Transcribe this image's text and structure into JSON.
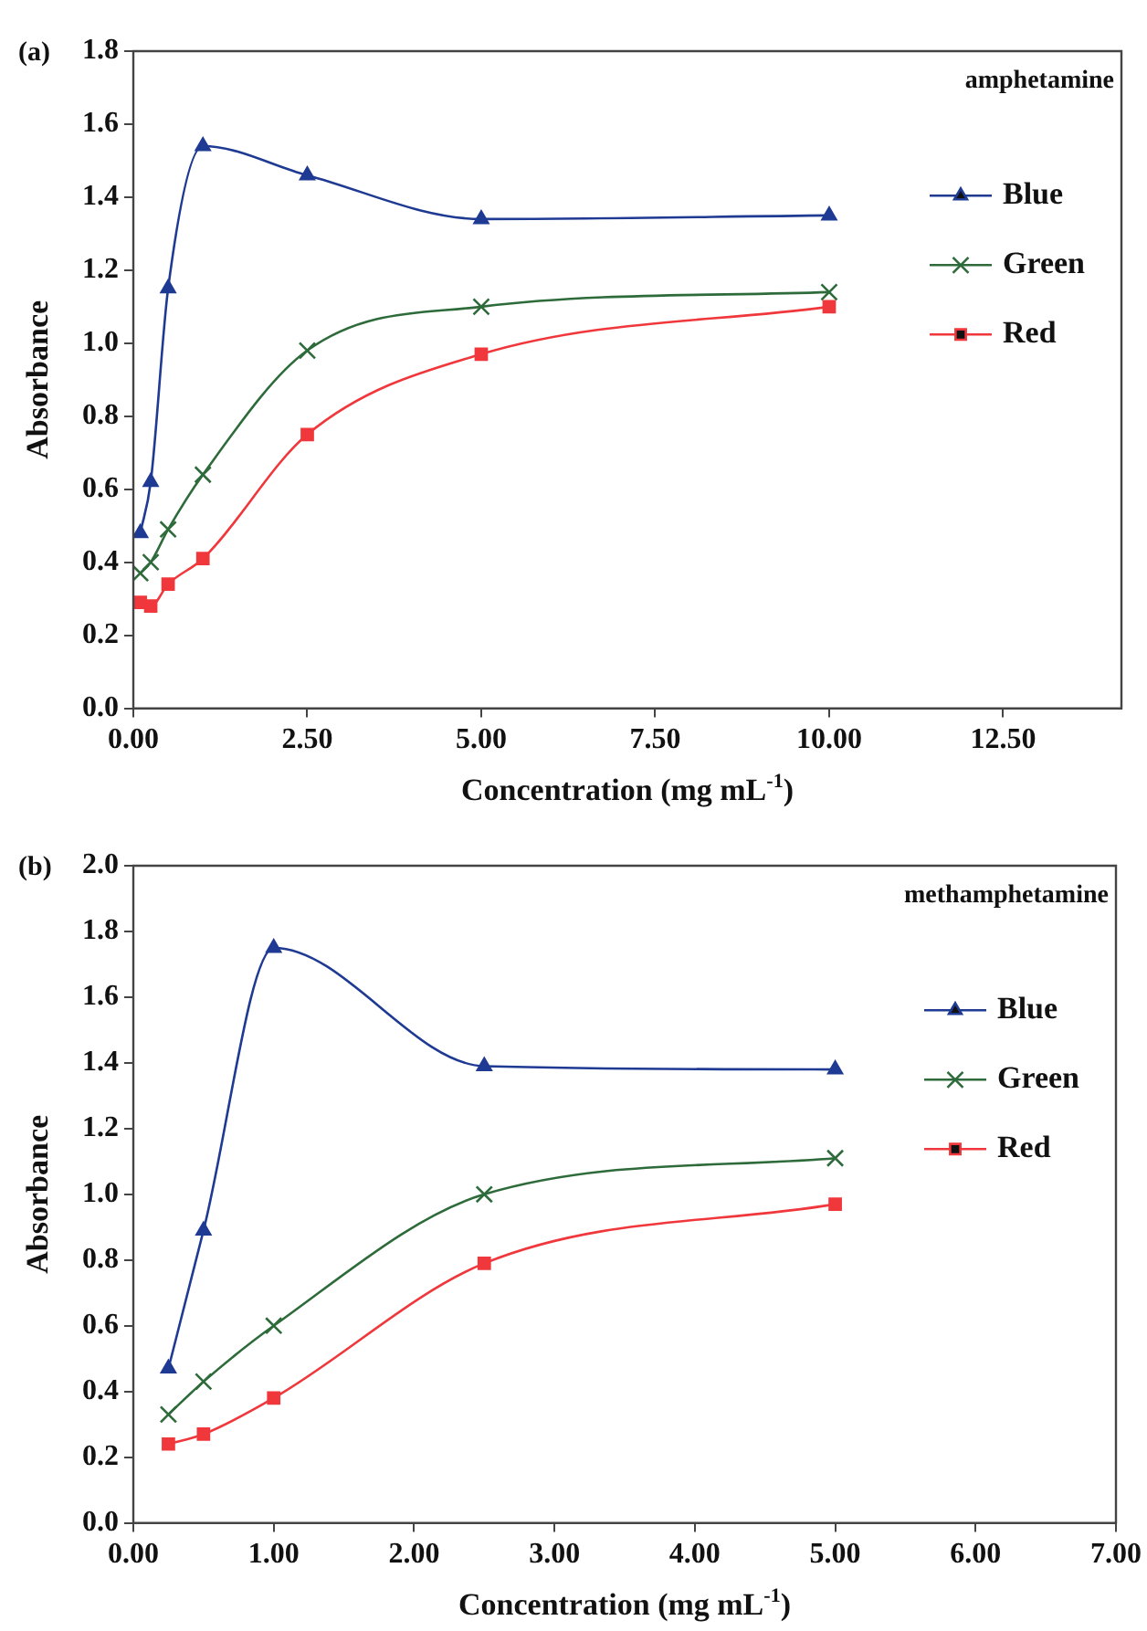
{
  "chart_data": [
    {
      "type": "line",
      "title": "(a)",
      "xlabel": "Concentration (mg mL$^{-1}$)",
      "ylabel": "Absorbance",
      "annotations": [
        "amphetamine"
      ],
      "x": [
        0.1,
        0.25,
        0.5,
        1,
        2.5,
        5,
        10
      ],
      "xlim": [
        0,
        14.2
      ],
      "xticks": [
        {
          "value": 0,
          "label": "0.00"
        },
        {
          "value": 2.5,
          "label": "2.50"
        },
        {
          "value": 5,
          "label": "5.00"
        },
        {
          "value": 7.5,
          "label": "7.50"
        },
        {
          "value": 10,
          "label": "10.00"
        },
        {
          "value": 12.5,
          "label": "12.50"
        }
      ],
      "ylim": [
        0,
        1.8
      ],
      "yticks": [
        {
          "value": 0,
          "label": "0.0"
        },
        {
          "value": 0.2,
          "label": "0.2"
        },
        {
          "value": 0.4,
          "label": "0.4"
        },
        {
          "value": 0.6,
          "label": "0.6"
        },
        {
          "value": 0.8,
          "label": "0.8"
        },
        {
          "value": 1,
          "label": "1.0"
        },
        {
          "value": 1.2,
          "label": "1.2"
        },
        {
          "value": 1.4,
          "label": "1.4"
        },
        {
          "value": 1.6,
          "label": "1.6"
        },
        {
          "value": 1.8,
          "label": "1.8"
        }
      ],
      "grid": false,
      "legend": "right",
      "series": [
        {
          "name": "Blue",
          "color": "#1f3a93",
          "marker": "triangle",
          "values": [
            0.48,
            0.62,
            1.15,
            1.54,
            1.46,
            1.34,
            1.35
          ]
        },
        {
          "name": "Green",
          "color": "#2e6b3a",
          "marker": "cross",
          "values": [
            0.37,
            0.4,
            0.49,
            0.64,
            0.98,
            1.1,
            1.14
          ]
        },
        {
          "name": "Red",
          "color": "#f0383c",
          "marker": "square",
          "values": [
            0.29,
            0.28,
            0.34,
            0.41,
            0.75,
            0.97,
            1.1
          ]
        }
      ]
    },
    {
      "type": "line",
      "title": "(b)",
      "xlabel": "Concentration (mg mL$^{-1}$)",
      "ylabel": "Absorbance",
      "annotations": [
        "methamphetamine"
      ],
      "x": [
        0.25,
        0.5,
        1,
        2.5,
        5
      ],
      "xlim": [
        0,
        7
      ],
      "xticks": [
        {
          "value": 0,
          "label": "0.00"
        },
        {
          "value": 1,
          "label": "1.00"
        },
        {
          "value": 2,
          "label": "2.00"
        },
        {
          "value": 3,
          "label": "3.00"
        },
        {
          "value": 4,
          "label": "4.00"
        },
        {
          "value": 5,
          "label": "5.00"
        },
        {
          "value": 6,
          "label": "6.00"
        },
        {
          "value": 7,
          "label": "7.00"
        }
      ],
      "ylim": [
        0,
        2
      ],
      "yticks": [
        {
          "value": 0,
          "label": "0.0"
        },
        {
          "value": 0.2,
          "label": "0.2"
        },
        {
          "value": 0.4,
          "label": "0.4"
        },
        {
          "value": 0.6,
          "label": "0.6"
        },
        {
          "value": 0.8,
          "label": "0.8"
        },
        {
          "value": 1,
          "label": "1.0"
        },
        {
          "value": 1.2,
          "label": "1.2"
        },
        {
          "value": 1.4,
          "label": "1.4"
        },
        {
          "value": 1.6,
          "label": "1.6"
        },
        {
          "value": 1.8,
          "label": "1.8"
        },
        {
          "value": 2,
          "label": "2.0"
        }
      ],
      "grid": false,
      "legend": "right",
      "series": [
        {
          "name": "Blue",
          "color": "#1f3a93",
          "marker": "triangle",
          "values": [
            0.47,
            0.89,
            1.75,
            1.39,
            1.38
          ]
        },
        {
          "name": "Green",
          "color": "#2e6b3a",
          "marker": "cross",
          "values": [
            0.33,
            0.43,
            0.6,
            1.0,
            1.11
          ]
        },
        {
          "name": "Red",
          "color": "#f0383c",
          "marker": "square",
          "values": [
            0.24,
            0.27,
            0.38,
            0.79,
            0.97
          ]
        }
      ]
    }
  ]
}
